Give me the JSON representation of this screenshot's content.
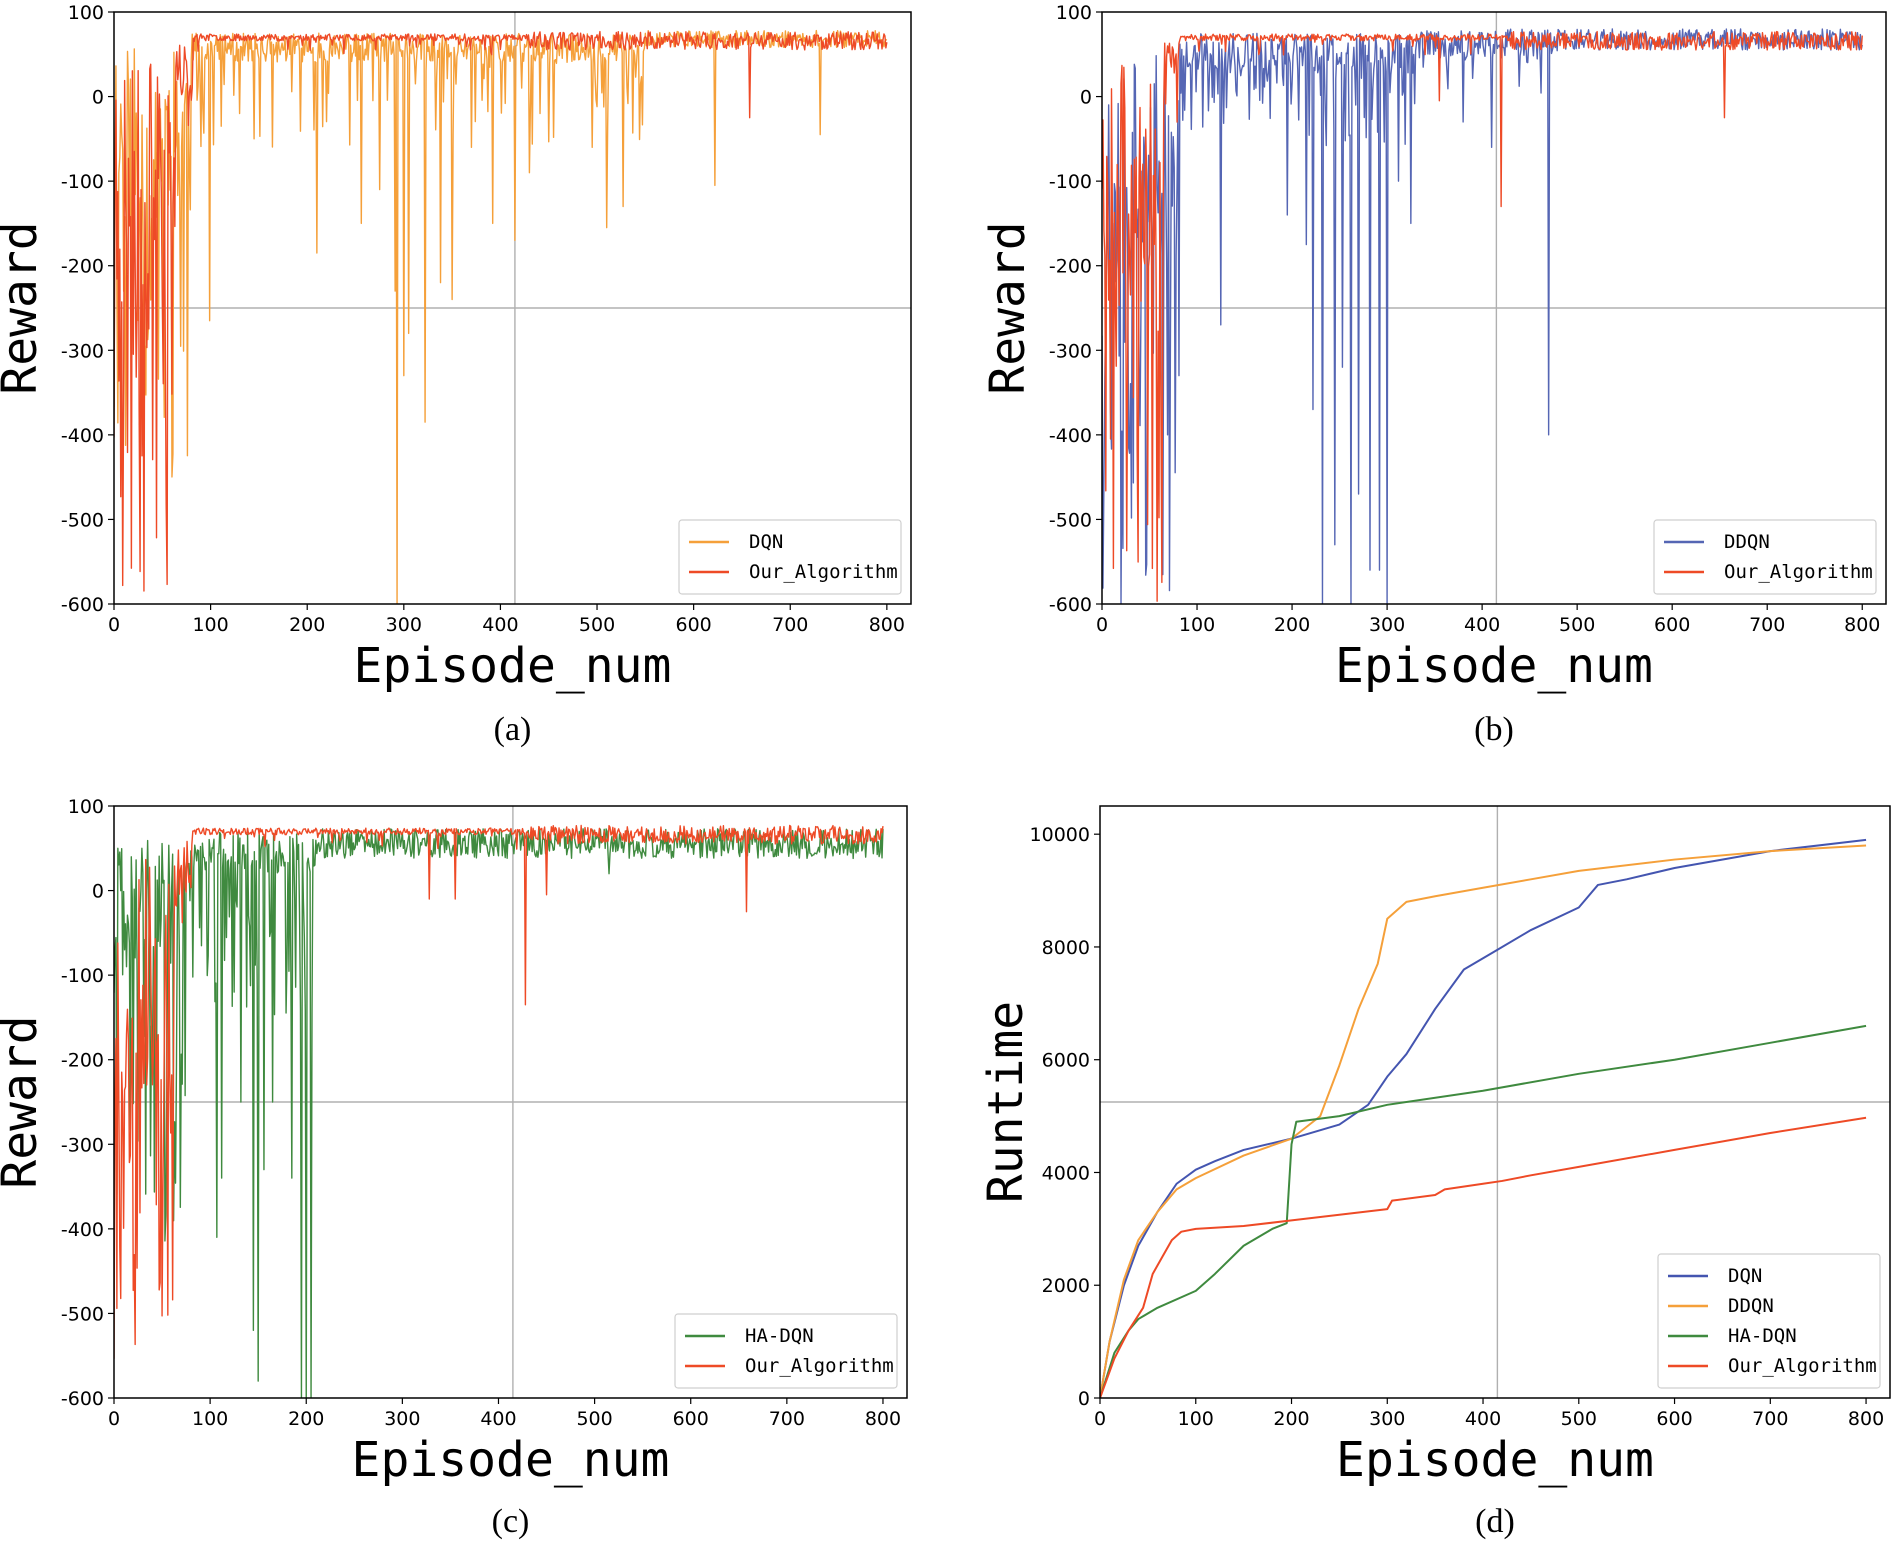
{
  "colors": {
    "DQN": "#f5a03a",
    "DDQN": "#5566b4",
    "HA-DQN": "#3f8a3f",
    "Our_Algorithm": "#ee4a26",
    "DQN_d": "#4455b0",
    "DDQN_d": "#f5a03a"
  },
  "chart_data": [
    {
      "id": "a",
      "type": "line",
      "caption": "(a)",
      "xlabel": "Episode_num",
      "ylabel": "Reward",
      "xlim": [
        0,
        825
      ],
      "ylim": [
        -600,
        100
      ],
      "xticks": [
        0,
        100,
        200,
        300,
        400,
        500,
        600,
        700,
        800
      ],
      "yticks": [
        100,
        0,
        -100,
        -200,
        -300,
        -400,
        -500,
        -600
      ],
      "grid": {
        "x": 415,
        "y": -250
      },
      "legend_position": "lower-right",
      "series": [
        {
          "name": "DQN",
          "color_key": "DQN",
          "seed": 11,
          "profile": "dqn",
          "dips": [
            [
              99,
              -265
            ],
            [
              130,
              -20
            ],
            [
              145,
              -50
            ],
            [
              210,
              -185
            ],
            [
              256,
              -150
            ],
            [
              275,
              -110
            ],
            [
              291,
              -230
            ],
            [
              293,
              -600
            ],
            [
              300,
              -330
            ],
            [
              305,
              -280
            ],
            [
              322,
              -385
            ],
            [
              338,
              -220
            ],
            [
              350,
              -240
            ],
            [
              370,
              -60
            ],
            [
              392,
              -150
            ],
            [
              415,
              -170
            ],
            [
              430,
              -90
            ],
            [
              495,
              -60
            ],
            [
              510,
              -155
            ],
            [
              527,
              -130
            ],
            [
              622,
              -105
            ],
            [
              731,
              -45
            ]
          ]
        },
        {
          "name": "Our_Algorithm",
          "color_key": "Our_Algorithm",
          "seed": 23,
          "profile": "ours",
          "dips": [
            [
              658,
              -25
            ]
          ]
        }
      ]
    },
    {
      "id": "b",
      "type": "line",
      "caption": "(b)",
      "xlabel": "Episode_num",
      "ylabel": "Reward",
      "xlim": [
        0,
        825
      ],
      "ylim": [
        -600,
        100
      ],
      "xticks": [
        0,
        100,
        200,
        300,
        400,
        500,
        600,
        700,
        800
      ],
      "yticks": [
        100,
        0,
        -100,
        -200,
        -300,
        -400,
        -500,
        -600
      ],
      "grid": {
        "x": 415,
        "y": -250
      },
      "legend_position": "lower-right",
      "series": [
        {
          "name": "DDQN",
          "color_key": "DDQN",
          "seed": 37,
          "profile": "ddqn",
          "dips": [
            [
              81,
              -330
            ],
            [
              125,
              -270
            ],
            [
              195,
              -140
            ],
            [
              215,
              -175
            ],
            [
              222,
              -370
            ],
            [
              232,
              -600
            ],
            [
              245,
              -530
            ],
            [
              253,
              -320
            ],
            [
              262,
              -600
            ],
            [
              270,
              -470
            ],
            [
              282,
              -560
            ],
            [
              292,
              -560
            ],
            [
              300,
              -600
            ],
            [
              312,
              -100
            ],
            [
              325,
              -150
            ],
            [
              380,
              -30
            ],
            [
              410,
              -60
            ],
            [
              470,
              -400
            ]
          ]
        },
        {
          "name": "Our_Algorithm",
          "color_key": "Our_Algorithm",
          "seed": 29,
          "profile": "ours",
          "dips": [
            [
              355,
              -5
            ],
            [
              420,
              -130
            ],
            [
              655,
              -25
            ]
          ]
        }
      ]
    },
    {
      "id": "c",
      "type": "line",
      "caption": "(c)",
      "xlabel": "Episode_num",
      "ylabel": "Reward",
      "xlim": [
        0,
        825
      ],
      "ylim": [
        -600,
        100
      ],
      "xticks": [
        0,
        100,
        200,
        300,
        400,
        500,
        600,
        700,
        800
      ],
      "yticks": [
        100,
        0,
        -100,
        -200,
        -300,
        -400,
        -500,
        -600
      ],
      "grid": {
        "x": 415,
        "y": -250
      },
      "legend_position": "lower-right",
      "series": [
        {
          "name": "HA-DQN",
          "color_key": "HA-DQN",
          "seed": 41,
          "profile": "hadqn",
          "dips": [
            [
              107,
              -410
            ],
            [
              112,
              -340
            ],
            [
              125,
              -120
            ],
            [
              132,
              -250
            ],
            [
              140,
              -30
            ],
            [
              145,
              -520
            ],
            [
              150,
              -580
            ],
            [
              156,
              -330
            ],
            [
              165,
              -250
            ],
            [
              180,
              -80
            ],
            [
              185,
              -340
            ],
            [
              195,
              -600
            ],
            [
              200,
              -600
            ],
            [
              205,
              -600
            ],
            [
              515,
              20
            ]
          ]
        },
        {
          "name": "Our_Algorithm",
          "color_key": "Our_Algorithm",
          "seed": 53,
          "profile": "ours",
          "dips": [
            [
              328,
              -10
            ],
            [
              355,
              -10
            ],
            [
              428,
              -135
            ],
            [
              450,
              -5
            ],
            [
              658,
              -25
            ]
          ]
        }
      ]
    },
    {
      "id": "d",
      "type": "line",
      "caption": "(d)",
      "xlabel": "Episode_num",
      "ylabel": "Runtime",
      "xlim": [
        0,
        825
      ],
      "ylim": [
        0,
        10500
      ],
      "xticks": [
        0,
        100,
        200,
        300,
        400,
        500,
        600,
        700,
        800
      ],
      "yticks": [
        0,
        2000,
        4000,
        6000,
        8000,
        10000
      ],
      "grid": {
        "x": 415,
        "y": 5250
      },
      "legend_position": "lower-right",
      "series": [
        {
          "name": "DQN",
          "color_key": "DQN_d",
          "points": [
            [
              0,
              0
            ],
            [
              10,
              1000
            ],
            [
              25,
              2000
            ],
            [
              40,
              2700
            ],
            [
              60,
              3300
            ],
            [
              80,
              3800
            ],
            [
              100,
              4050
            ],
            [
              120,
              4200
            ],
            [
              150,
              4400
            ],
            [
              200,
              4600
            ],
            [
              250,
              4850
            ],
            [
              280,
              5200
            ],
            [
              300,
              5700
            ],
            [
              320,
              6100
            ],
            [
              350,
              6900
            ],
            [
              380,
              7600
            ],
            [
              410,
              7900
            ],
            [
              450,
              8300
            ],
            [
              500,
              8700
            ],
            [
              520,
              9100
            ],
            [
              550,
              9200
            ],
            [
              600,
              9400
            ],
            [
              700,
              9700
            ],
            [
              800,
              9900
            ]
          ]
        },
        {
          "name": "DDQN",
          "color_key": "DDQN_d",
          "points": [
            [
              0,
              0
            ],
            [
              10,
              1000
            ],
            [
              25,
              2100
            ],
            [
              40,
              2800
            ],
            [
              60,
              3300
            ],
            [
              80,
              3700
            ],
            [
              100,
              3900
            ],
            [
              150,
              4300
            ],
            [
              200,
              4600
            ],
            [
              230,
              5000
            ],
            [
              250,
              5900
            ],
            [
              270,
              6900
            ],
            [
              290,
              7700
            ],
            [
              300,
              8500
            ],
            [
              320,
              8800
            ],
            [
              350,
              8900
            ],
            [
              400,
              9050
            ],
            [
              450,
              9200
            ],
            [
              500,
              9350
            ],
            [
              600,
              9550
            ],
            [
              700,
              9700
            ],
            [
              800,
              9800
            ]
          ]
        },
        {
          "name": "HA-DQN",
          "color_key": "HA-DQN",
          "points": [
            [
              0,
              0
            ],
            [
              15,
              800
            ],
            [
              30,
              1200
            ],
            [
              40,
              1400
            ],
            [
              60,
              1600
            ],
            [
              100,
              1900
            ],
            [
              120,
              2200
            ],
            [
              150,
              2700
            ],
            [
              180,
              3000
            ],
            [
              195,
              3100
            ],
            [
              200,
              4500
            ],
            [
              205,
              4900
            ],
            [
              250,
              5000
            ],
            [
              300,
              5200
            ],
            [
              400,
              5450
            ],
            [
              500,
              5750
            ],
            [
              600,
              6000
            ],
            [
              700,
              6300
            ],
            [
              800,
              6600
            ]
          ]
        },
        {
          "name": "Our_Algorithm",
          "color_key": "Our_Algorithm",
          "points": [
            [
              0,
              0
            ],
            [
              15,
              700
            ],
            [
              30,
              1200
            ],
            [
              45,
              1600
            ],
            [
              55,
              2200
            ],
            [
              65,
              2500
            ],
            [
              75,
              2800
            ],
            [
              85,
              2950
            ],
            [
              100,
              3000
            ],
            [
              150,
              3050
            ],
            [
              200,
              3150
            ],
            [
              250,
              3250
            ],
            [
              300,
              3350
            ],
            [
              305,
              3500
            ],
            [
              350,
              3600
            ],
            [
              360,
              3700
            ],
            [
              400,
              3800
            ],
            [
              420,
              3850
            ],
            [
              450,
              3950
            ],
            [
              500,
              4100
            ],
            [
              600,
              4400
            ],
            [
              700,
              4700
            ],
            [
              800,
              4970
            ]
          ]
        }
      ]
    }
  ]
}
